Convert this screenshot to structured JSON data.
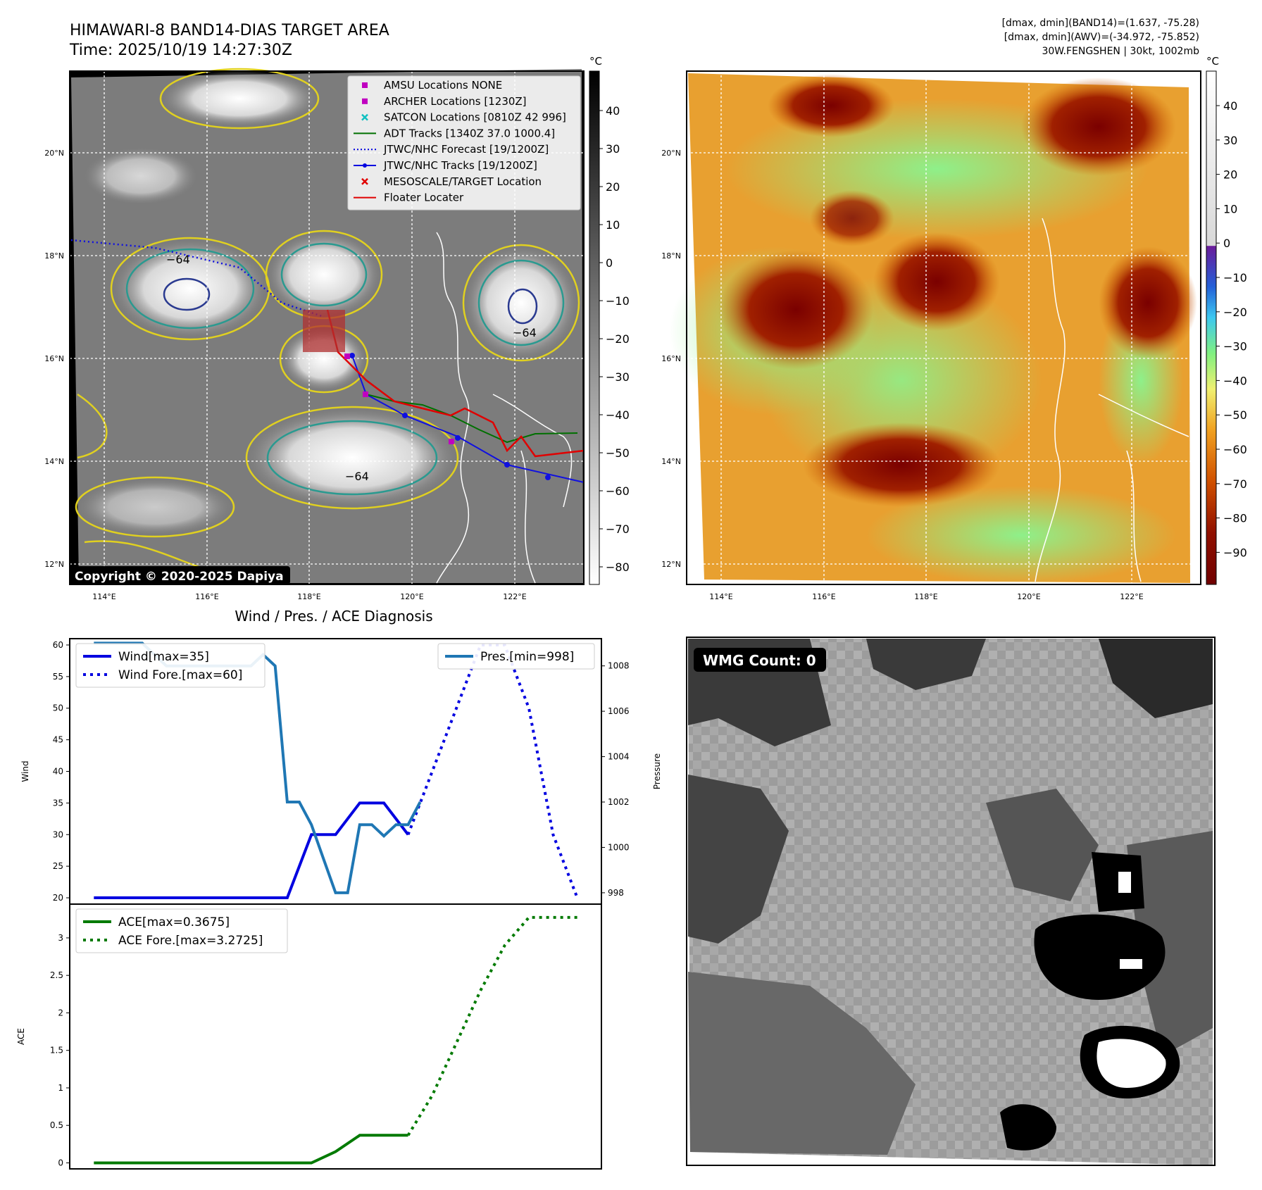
{
  "header": {
    "title": "HIMAWARI-8 BAND14-DIAS TARGET AREA",
    "time": "Time: 2025/10/19 14:27:30Z",
    "info_line1": "[dmax, dmin](BAND14)=(1.637, -75.28)",
    "info_line2": "[dmax, dmin](AWV)=(-34.972, -75.852)",
    "info_line3": "30W.FENGSHEN | 30kt, 1002mb"
  },
  "panel_ir": {
    "copyright": "Copyright © 2020-2025 Dapiya",
    "colorbar_unit": "°C",
    "colorbar_ticks": [
      "40",
      "30",
      "20",
      "10",
      "0",
      "−10",
      "−20",
      "−30",
      "−40",
      "−50",
      "−60",
      "−70",
      "−80"
    ],
    "lat_labels": [
      "20°N",
      "18°N",
      "16°N",
      "14°N",
      "12°N"
    ],
    "lon_labels": [
      "114°E",
      "116°E",
      "118°E",
      "120°E",
      "122°E"
    ],
    "contour_label": "−64",
    "legend": [
      {
        "label": "AMSU Locations NONE",
        "marker": "square",
        "color": "#c000c0"
      },
      {
        "label": "ARCHER Locations [1230Z]",
        "marker": "square",
        "color": "#c000c0"
      },
      {
        "label": "SATCON Locations [0810Z 42 996]",
        "marker": "x",
        "color": "#10c0c0"
      },
      {
        "label": "ADT Tracks [1340Z 37.0 1000.4]",
        "marker": "line",
        "color": "#007000"
      },
      {
        "label": "JTWC/NHC Forecast [19/1200Z]",
        "marker": "dotted",
        "color": "#0000e0"
      },
      {
        "label": "JTWC/NHC Tracks [19/1200Z]",
        "marker": "line-dot",
        "color": "#0000e0"
      },
      {
        "label": "MESOSCALE/TARGET Location",
        "marker": "x",
        "color": "#e00000"
      },
      {
        "label": "Floater Locater",
        "marker": "line",
        "color": "#e00000"
      }
    ]
  },
  "panel_wv": {
    "colorbar_unit": "°C",
    "colorbar_ticks": [
      "40",
      "30",
      "20",
      "10",
      "0",
      "−10",
      "−20",
      "−30",
      "−40",
      "−50",
      "−60",
      "−70",
      "−80",
      "−90"
    ],
    "lat_labels": [
      "20°N",
      "18°N",
      "16°N",
      "14°N",
      "12°N"
    ],
    "lon_labels": [
      "114°E",
      "116°E",
      "118°E",
      "120°E",
      "122°E"
    ]
  },
  "panel_wmg": {
    "badge": "WMG Count: 0"
  },
  "chart_data": [
    {
      "type": "line",
      "title": "Wind / Pres. / ACE Diagnosis",
      "ylabel": "Wind",
      "ylabel_right": "Pressure",
      "ylim": [
        19,
        61
      ],
      "ylim_right": [
        997.5,
        1009.2
      ],
      "yticks": [
        20,
        25,
        30,
        35,
        40,
        45,
        50,
        55,
        60
      ],
      "yticks_right": [
        998,
        1000,
        1002,
        1004,
        1006,
        1008
      ],
      "xlim": [
        -1,
        21
      ],
      "legend_left": [
        "Wind[max=35]",
        "Wind Fore.[max=60]"
      ],
      "legend_right": [
        "Pres.[min=998]"
      ],
      "series": [
        {
          "name": "Wind[max=35]",
          "axis": "left",
          "style": "solid",
          "color": "#0000e0",
          "x": [
            0,
            1,
            2,
            3,
            4,
            5,
            6,
            7,
            8,
            9,
            10,
            11,
            12,
            13
          ],
          "y": [
            20,
            20,
            20,
            20,
            20,
            20,
            20,
            20,
            20,
            30,
            30,
            35,
            35,
            30
          ]
        },
        {
          "name": "Wind Fore.[max=60]",
          "axis": "left",
          "style": "dotted",
          "color": "#0000e0",
          "x": [
            13,
            14,
            15,
            16,
            17,
            18,
            19,
            20
          ],
          "y": [
            30,
            40,
            50,
            60,
            60,
            50,
            30,
            20
          ]
        },
        {
          "name": "Pres.[min=998]",
          "axis": "right",
          "style": "solid",
          "color": "#1f77b4",
          "x": [
            0,
            1,
            2,
            3,
            4,
            5,
            6,
            6.5,
            7,
            7.5,
            8,
            8.5,
            9,
            9.5,
            10,
            10.5,
            11,
            11.5,
            12,
            12.5,
            13,
            13.5
          ],
          "y": [
            1009,
            1009,
            1009,
            1008,
            1008,
            1008,
            1008,
            1008,
            1008.5,
            1008,
            1002,
            1002,
            1001,
            999.5,
            998,
            998,
            1001,
            1001,
            1000.5,
            1001,
            1001,
            1002
          ]
        }
      ]
    },
    {
      "type": "line",
      "ylabel": "ACE",
      "ylim": [
        -0.08,
        3.45
      ],
      "yticks": [
        0.0,
        0.5,
        1.0,
        1.5,
        2.0,
        2.5,
        3.0
      ],
      "xlim": [
        -1,
        21
      ],
      "legend": [
        "ACE[max=0.3675]",
        "ACE Fore.[max=3.2725]"
      ],
      "series": [
        {
          "name": "ACE[max=0.3675]",
          "style": "solid",
          "color": "#007a00",
          "x": [
            0,
            1,
            2,
            3,
            4,
            5,
            6,
            7,
            8,
            9,
            10,
            11,
            12,
            13
          ],
          "y": [
            0,
            0,
            0,
            0,
            0,
            0,
            0,
            0,
            0,
            0,
            0.15,
            0.3675,
            0.3675,
            0.3675
          ]
        },
        {
          "name": "ACE Fore.[max=3.2725]",
          "style": "dotted",
          "color": "#007a00",
          "x": [
            13,
            14,
            15,
            16,
            17,
            18,
            19,
            20
          ],
          "y": [
            0.3675,
            0.9,
            1.6,
            2.3,
            2.9,
            3.2725,
            3.2725,
            3.2725
          ]
        }
      ]
    }
  ]
}
